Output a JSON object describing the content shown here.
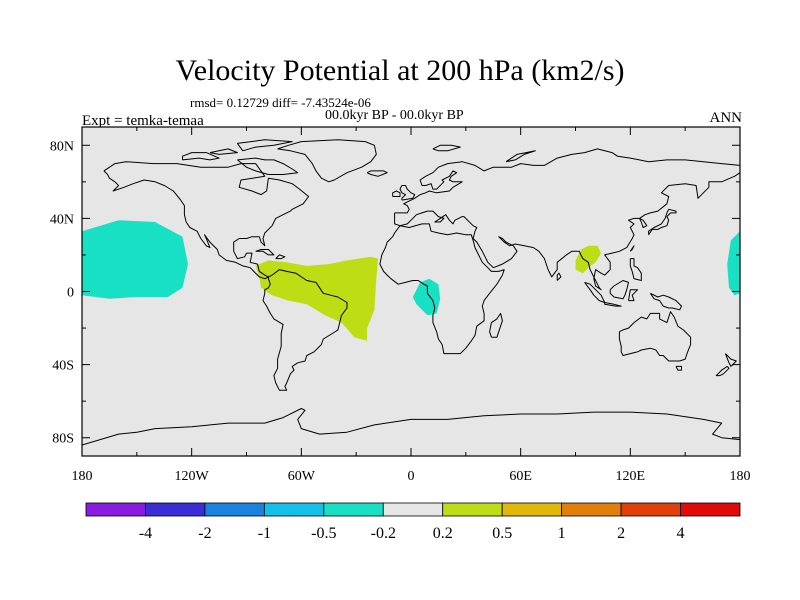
{
  "title": "Velocity Potential at 200 hPa (km2/s)",
  "stats_line": "rmsd= 0.12729 diff= -7.43524e-06",
  "left_label": "Expt = temka-temaa",
  "center_label": "00.0kyr BP - 00.0kyr BP",
  "right_label": "ANN",
  "map": {
    "projection": "cylindrical-equidistant",
    "lon_range": [
      -180,
      180
    ],
    "lat_range": [
      -90,
      90
    ],
    "background_color": "#e6e6e6",
    "lon_ticks": [
      {
        "value": -180,
        "label": "180"
      },
      {
        "value": -120,
        "label": "120W"
      },
      {
        "value": -60,
        "label": "60W"
      },
      {
        "value": 0,
        "label": "0"
      },
      {
        "value": 60,
        "label": "60E"
      },
      {
        "value": 120,
        "label": "120E"
      },
      {
        "value": 180,
        "label": "180"
      }
    ],
    "lat_ticks": [
      {
        "value": 80,
        "label": "80N"
      },
      {
        "value": 40,
        "label": "40N"
      },
      {
        "value": 0,
        "label": "0"
      },
      {
        "value": -40,
        "label": "40S"
      },
      {
        "value": -80,
        "label": "80S"
      }
    ]
  },
  "colorbar": {
    "colors": [
      "#8a1be0",
      "#3a2fd6",
      "#1a83e0",
      "#14c0e8",
      "#18e0c4",
      "#e6e6e6",
      "#bedd14",
      "#e0b80a",
      "#e0800a",
      "#e0400a",
      "#e00a0a"
    ],
    "labels": [
      "-4",
      "-2",
      "-1",
      "-0.5",
      "-0.2",
      "0.2",
      "0.5",
      "1",
      "2",
      "4"
    ]
  },
  "regions": [
    {
      "name": "central-pacific",
      "value_class": "-0.5 to -0.2",
      "color": "#18e0c4",
      "points": [
        [
          -180,
          33
        ],
        [
          -160,
          39
        ],
        [
          -140,
          38
        ],
        [
          -125,
          30
        ],
        [
          -122,
          15
        ],
        [
          -125,
          2
        ],
        [
          -133,
          -3
        ],
        [
          -150,
          -3
        ],
        [
          -165,
          -4
        ],
        [
          -180,
          -2
        ]
      ]
    },
    {
      "name": "gulf-of-guinea",
      "value_class": "-0.5 to -0.2",
      "color": "#18e0c4",
      "points": [
        [
          3,
          1
        ],
        [
          5,
          5
        ],
        [
          10,
          7
        ],
        [
          15,
          4
        ],
        [
          16,
          -4
        ],
        [
          14,
          -12
        ],
        [
          9,
          -13
        ],
        [
          3,
          -7
        ],
        [
          1,
          -3
        ]
      ]
    },
    {
      "name": "west-pacific-edge",
      "value_class": "-0.5 to -0.2",
      "color": "#18e0c4",
      "points": [
        [
          180,
          33
        ],
        [
          175,
          28
        ],
        [
          173,
          15
        ],
        [
          174,
          2
        ],
        [
          177,
          -2
        ],
        [
          180,
          -1
        ]
      ]
    },
    {
      "name": "south-america-atlantic",
      "value_class": "0.2 to 0.5",
      "color": "#bedd14",
      "points": [
        [
          -85,
          14
        ],
        [
          -78,
          17
        ],
        [
          -68,
          16
        ],
        [
          -57,
          14
        ],
        [
          -45,
          15
        ],
        [
          -35,
          17
        ],
        [
          -22,
          19
        ],
        [
          -18,
          18
        ],
        [
          -19,
          7
        ],
        [
          -20,
          -10
        ],
        [
          -24,
          -20
        ],
        [
          -24,
          -27
        ],
        [
          -31,
          -25
        ],
        [
          -38,
          -17
        ],
        [
          -47,
          -13
        ],
        [
          -57,
          -7
        ],
        [
          -67,
          -5
        ],
        [
          -76,
          -2
        ],
        [
          -82,
          2
        ],
        [
          -83,
          8
        ]
      ]
    },
    {
      "name": "southeast-asia",
      "value_class": "0.2 to 0.5",
      "color": "#bedd14",
      "points": [
        [
          90,
          17
        ],
        [
          93,
          23
        ],
        [
          97,
          25
        ],
        [
          102,
          25
        ],
        [
          104,
          21
        ],
        [
          101,
          16
        ],
        [
          97,
          13
        ],
        [
          94,
          10
        ],
        [
          90,
          12
        ]
      ]
    }
  ]
}
